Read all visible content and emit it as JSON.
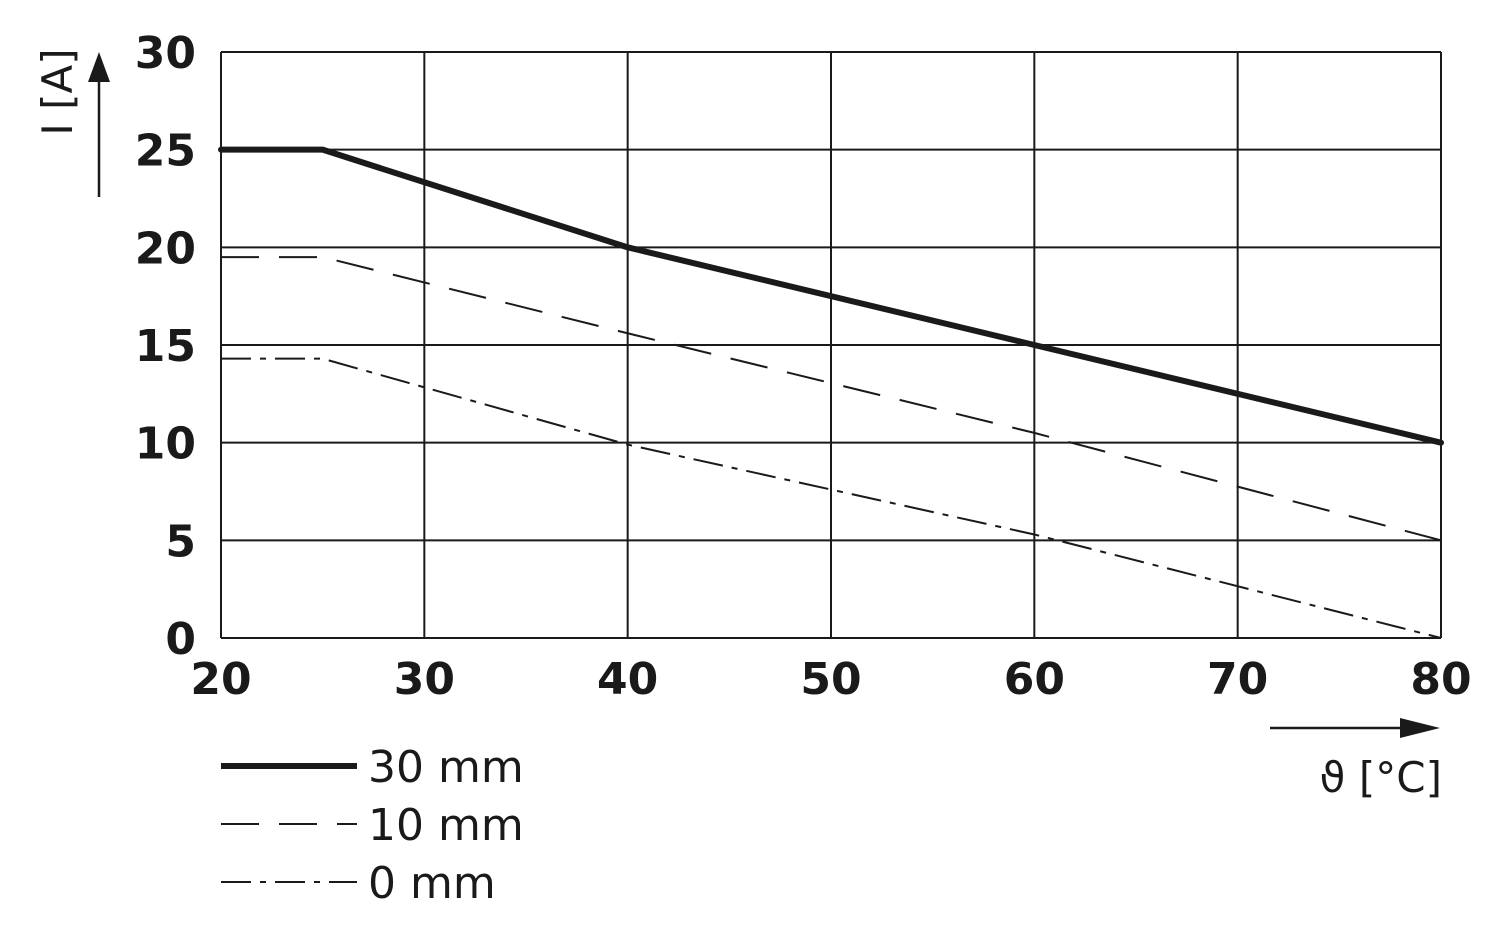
{
  "chart_data": {
    "type": "line",
    "xlabel": "ϑ [°C]",
    "ylabel": "I [A]",
    "xlim": [
      20,
      80
    ],
    "ylim": [
      0,
      30
    ],
    "x_ticks": [
      20,
      30,
      40,
      50,
      60,
      70,
      80
    ],
    "y_ticks": [
      0,
      5,
      10,
      15,
      20,
      25,
      30
    ],
    "grid": true,
    "legend_position": "bottom-left",
    "series": [
      {
        "name": "30 mm",
        "style": "solid",
        "color": "#1a1a1a",
        "points": [
          [
            20,
            25
          ],
          [
            25,
            25
          ],
          [
            40,
            20
          ],
          [
            60,
            15
          ],
          [
            80,
            10
          ]
        ]
      },
      {
        "name": "10 mm",
        "style": "dashed",
        "color": "#1a1a1a",
        "points": [
          [
            20,
            19.5
          ],
          [
            25,
            19.5
          ],
          [
            40,
            15.6
          ],
          [
            60,
            10.5
          ],
          [
            80,
            5
          ]
        ]
      },
      {
        "name": "0 mm",
        "style": "dash-dot",
        "color": "#1a1a1a",
        "points": [
          [
            20,
            14.3
          ],
          [
            25,
            14.3
          ],
          [
            40,
            9.9
          ],
          [
            60,
            5.3
          ],
          [
            80,
            0
          ]
        ]
      }
    ]
  }
}
